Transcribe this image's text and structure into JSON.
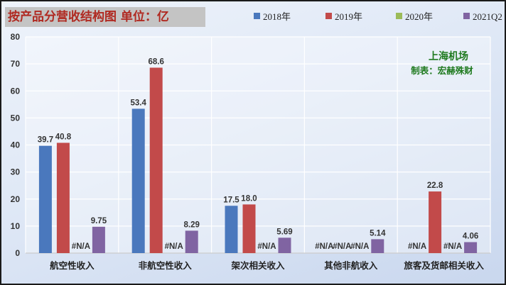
{
  "title": "按产品分营收结构图 单位：亿",
  "chart_data": {
    "type": "bar",
    "title": "按产品分营收结构图 单位：亿",
    "categories": [
      "航空性收入",
      "非航空性收入",
      "架次相关收入",
      "其他非航收入",
      "旅客及货邮相关收入"
    ],
    "series": [
      {
        "name": "2018年",
        "color": "#4a78bd",
        "values": [
          39.7,
          53.4,
          17.5,
          null,
          null
        ],
        "labels": [
          "39.7",
          "53.4",
          "17.5",
          "#N/A",
          "#N/A"
        ]
      },
      {
        "name": "2019年",
        "color": "#c24a4a",
        "values": [
          40.8,
          68.6,
          18.0,
          null,
          22.8
        ],
        "labels": [
          "40.8",
          "68.6",
          "18.0",
          "#N/A",
          "22.8"
        ]
      },
      {
        "name": "2020年",
        "color": "#9bbb59",
        "values": [
          null,
          null,
          null,
          null,
          null
        ],
        "labels": [
          "#N/A",
          "#N/A",
          "#N/A",
          "#N/A",
          "#N/A"
        ]
      },
      {
        "name": "2021Q2",
        "color": "#8064a2",
        "values": [
          9.75,
          8.29,
          5.69,
          5.14,
          4.06
        ],
        "labels": [
          "9.75",
          "8.29",
          "5.69",
          "5.14",
          "4.06"
        ]
      }
    ],
    "ylim": [
      0,
      80
    ],
    "yticks": [
      0,
      10,
      20,
      30,
      40,
      50,
      60,
      70,
      80
    ],
    "grid": true,
    "legend": "top-right"
  },
  "annotation": {
    "line1": "上海机场",
    "line2": "制表：宏赫殊财"
  }
}
